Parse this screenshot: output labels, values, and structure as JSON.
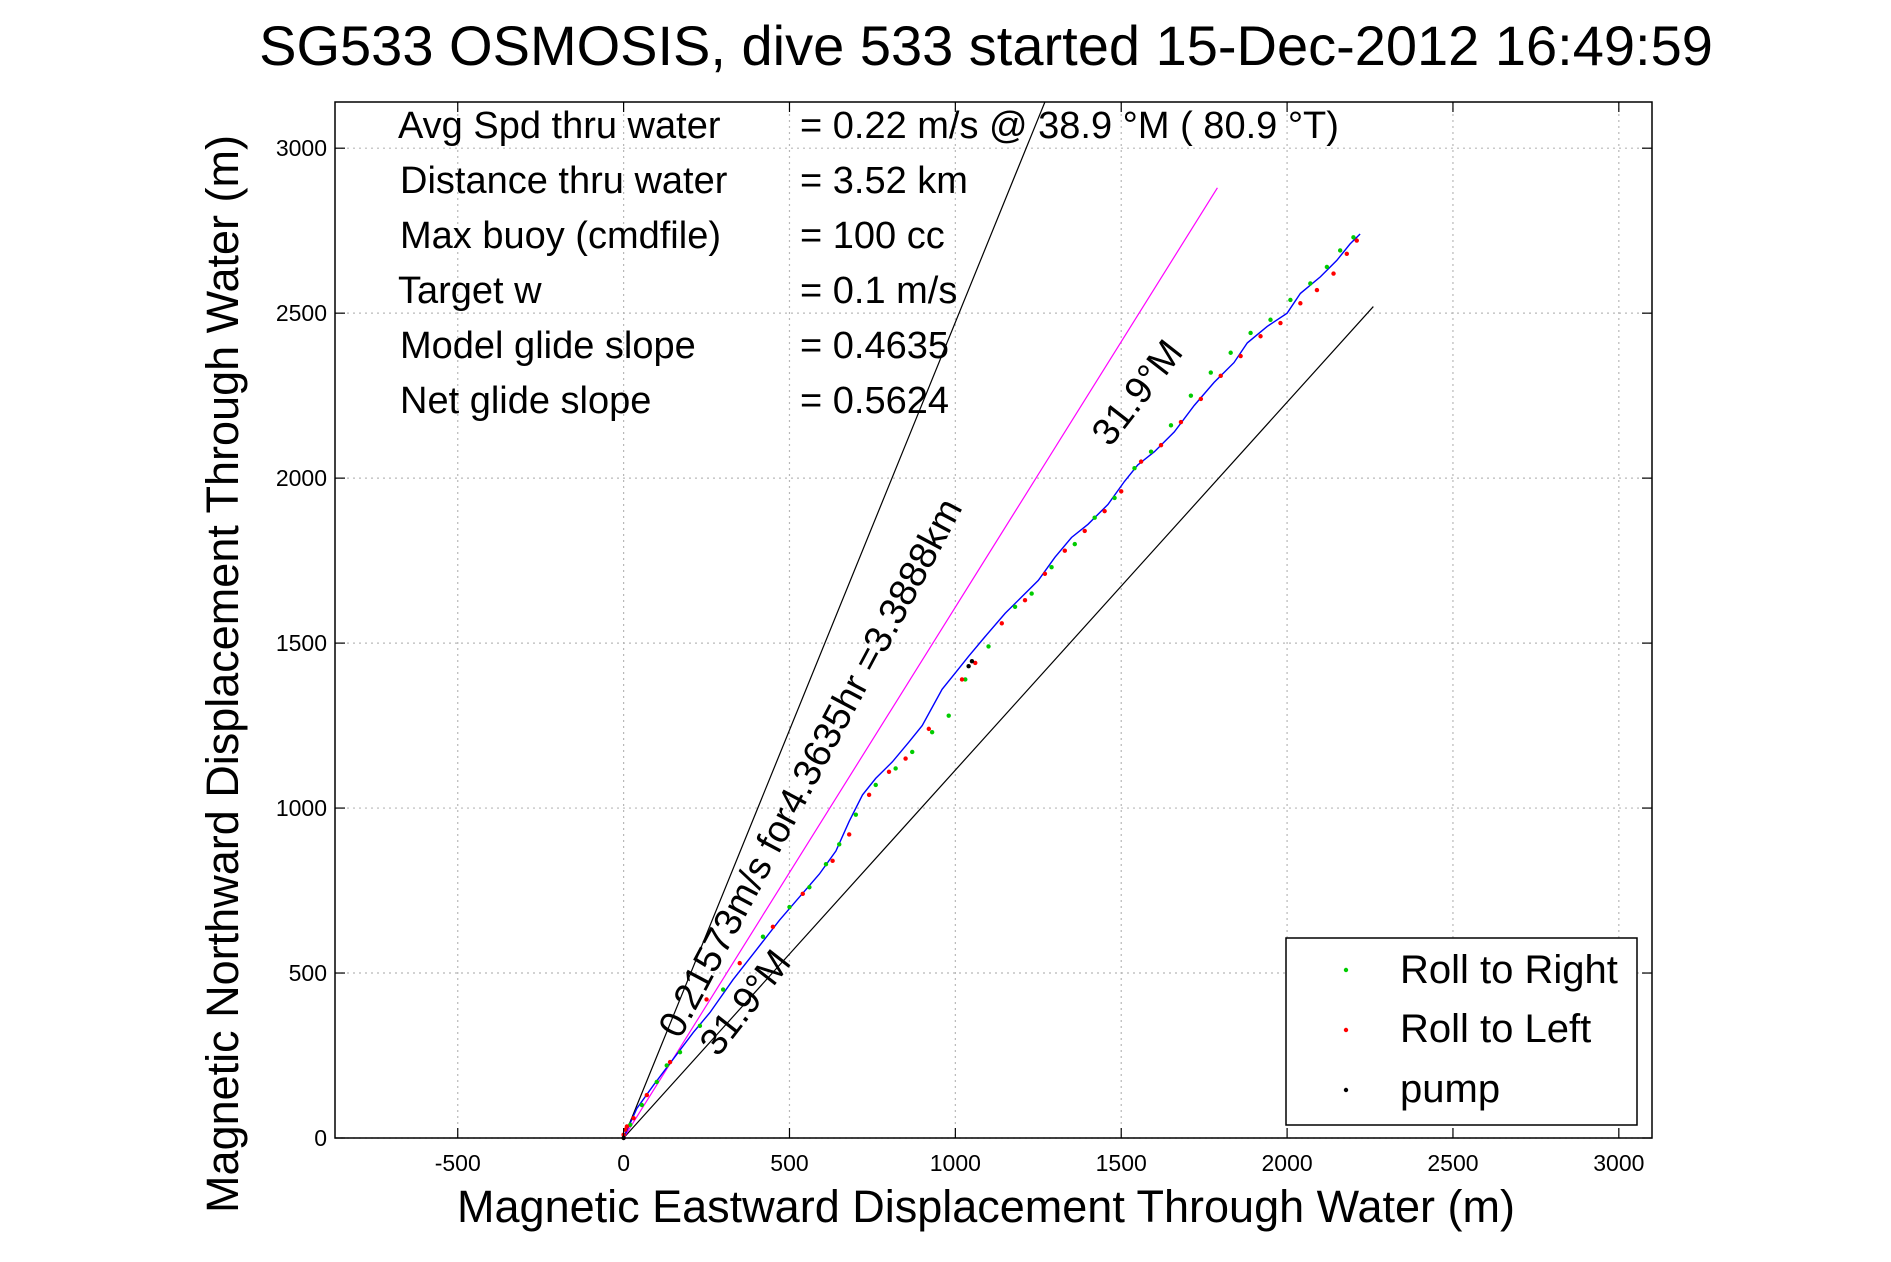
{
  "chart_data": {
    "type": "line",
    "title": "SG533 OSMOSIS, dive 533 started 15-Dec-2012 16:49:59",
    "xlabel": "Magnetic Eastward Displacement Through Water (m)",
    "ylabel": "Magnetic Northward Displacement Through Water (m)",
    "xlim": [
      -870,
      3100
    ],
    "ylim": [
      0,
      3140
    ],
    "xticks": [
      "-500",
      "0",
      "500",
      "1000",
      "1500",
      "2000",
      "2500",
      "3000"
    ],
    "yticks": [
      "0",
      "500",
      "1000",
      "1500",
      "2000",
      "2500",
      "3000"
    ],
    "grid": true,
    "legend_position": "bottom-right",
    "stats": [
      {
        "label": "Avg Spd thru water",
        "value": "=  0.22 m/s @  38.9 °M ( 80.9 °T)"
      },
      {
        "label": "Distance thru water",
        "value": "=  3.52 km"
      },
      {
        "label": "Max buoy (cmdfile)",
        "value": "= 100 cc"
      },
      {
        "label": "Target w",
        "value": "= 0.1 m/s"
      },
      {
        "label": "Model glide slope",
        "value": "= 0.4635"
      },
      {
        "label": "Net glide slope",
        "value": "= 0.5624"
      }
    ],
    "annotations": {
      "track_label": "0.21573m/s for4.3635hr =3.3888km",
      "heading_label_upper": "31.9°M",
      "heading_label_lower": "31.9°M"
    },
    "reference_lines": [
      {
        "x": [
          0,
          1270
        ],
        "y": [
          0,
          3140
        ],
        "color": "#000000"
      },
      {
        "x": [
          0,
          2260
        ],
        "y": [
          0,
          2520
        ],
        "color": "#000000"
      },
      {
        "x": [
          0,
          1790
        ],
        "y": [
          0,
          2880
        ],
        "color": "#ff00ff"
      }
    ],
    "track": {
      "color": "#0000ff",
      "x": [
        0,
        40,
        90,
        150,
        210,
        260,
        330,
        400,
        470,
        530,
        590,
        640,
        680,
        720,
        760,
        810,
        860,
        900,
        960,
        1000,
        1040,
        1090,
        1150,
        1200,
        1250,
        1300,
        1350,
        1400,
        1460,
        1510,
        1550,
        1600,
        1660,
        1720,
        1780,
        1840,
        1880,
        1940,
        2000,
        2040,
        2100,
        2150,
        2190,
        2220
      ],
      "y": [
        0,
        90,
        160,
        240,
        320,
        380,
        480,
        570,
        660,
        730,
        800,
        870,
        960,
        1040,
        1090,
        1140,
        1200,
        1250,
        1360,
        1410,
        1460,
        1520,
        1590,
        1640,
        1690,
        1760,
        1820,
        1860,
        1920,
        1990,
        2040,
        2080,
        2140,
        2220,
        2290,
        2350,
        2410,
        2460,
        2500,
        2560,
        2610,
        2660,
        2710,
        2740
      ]
    },
    "series": [
      {
        "name": "Roll to Right",
        "color": "#00cc00",
        "x": [
          20,
          55,
          100,
          130,
          170,
          230,
          300,
          420,
          500,
          560,
          610,
          650,
          700,
          760,
          820,
          870,
          930,
          980,
          1030,
          1100,
          1180,
          1230,
          1290,
          1360,
          1420,
          1480,
          1540,
          1590,
          1650,
          1710,
          1770,
          1830,
          1890,
          1950,
          2010,
          2070,
          2120,
          2160,
          2200
        ],
        "y": [
          40,
          100,
          170,
          220,
          260,
          340,
          450,
          610,
          700,
          760,
          830,
          890,
          980,
          1070,
          1120,
          1170,
          1230,
          1280,
          1390,
          1490,
          1610,
          1650,
          1730,
          1800,
          1880,
          1940,
          2030,
          2080,
          2160,
          2250,
          2320,
          2380,
          2440,
          2480,
          2540,
          2590,
          2640,
          2690,
          2730
        ]
      },
      {
        "name": "Roll to Left",
        "color": "#ff0000",
        "x": [
          0,
          5,
          10,
          30,
          70,
          140,
          250,
          350,
          450,
          540,
          630,
          680,
          740,
          800,
          850,
          920,
          1020,
          1060,
          1140,
          1210,
          1270,
          1330,
          1390,
          1450,
          1500,
          1560,
          1620,
          1680,
          1740,
          1800,
          1860,
          1920,
          1980,
          2040,
          2090,
          2140,
          2180,
          2210
        ],
        "y": [
          10,
          25,
          35,
          60,
          130,
          230,
          420,
          530,
          640,
          740,
          840,
          920,
          1040,
          1110,
          1150,
          1240,
          1390,
          1440,
          1560,
          1630,
          1710,
          1780,
          1840,
          1900,
          1960,
          2050,
          2100,
          2170,
          2240,
          2310,
          2370,
          2430,
          2470,
          2530,
          2570,
          2620,
          2680,
          2720
        ]
      },
      {
        "name": "pump",
        "color": "#000000",
        "x": [
          0,
          1040,
          1050
        ],
        "y": [
          0,
          1430,
          1445
        ]
      }
    ]
  }
}
